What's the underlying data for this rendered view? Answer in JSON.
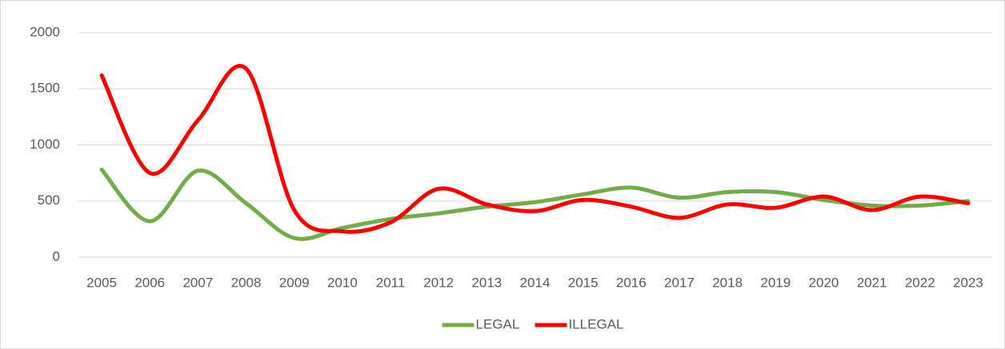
{
  "chart_data": {
    "type": "line",
    "categories": [
      "2005",
      "2006",
      "2007",
      "2008",
      "2009",
      "2010",
      "2011",
      "2012",
      "2013",
      "2014",
      "2015",
      "2016",
      "2017",
      "2018",
      "2019",
      "2020",
      "2021",
      "2022",
      "2023"
    ],
    "series": [
      {
        "name": "LEGAL",
        "color": "#70ad47",
        "values": [
          780,
          320,
          770,
          480,
          170,
          260,
          340,
          390,
          450,
          490,
          560,
          620,
          530,
          580,
          580,
          510,
          460,
          460,
          500
        ]
      },
      {
        "name": "ILLEGAL",
        "color": "#ff0000",
        "values": [
          1620,
          750,
          1220,
          1680,
          420,
          230,
          310,
          610,
          470,
          410,
          510,
          450,
          350,
          470,
          440,
          540,
          420,
          540,
          480
        ]
      }
    ],
    "ylim": [
      0,
      2000
    ],
    "yticks": [
      0,
      500,
      1000,
      1500,
      2000
    ],
    "grid": true,
    "smooth": true,
    "legend": "bottom"
  }
}
